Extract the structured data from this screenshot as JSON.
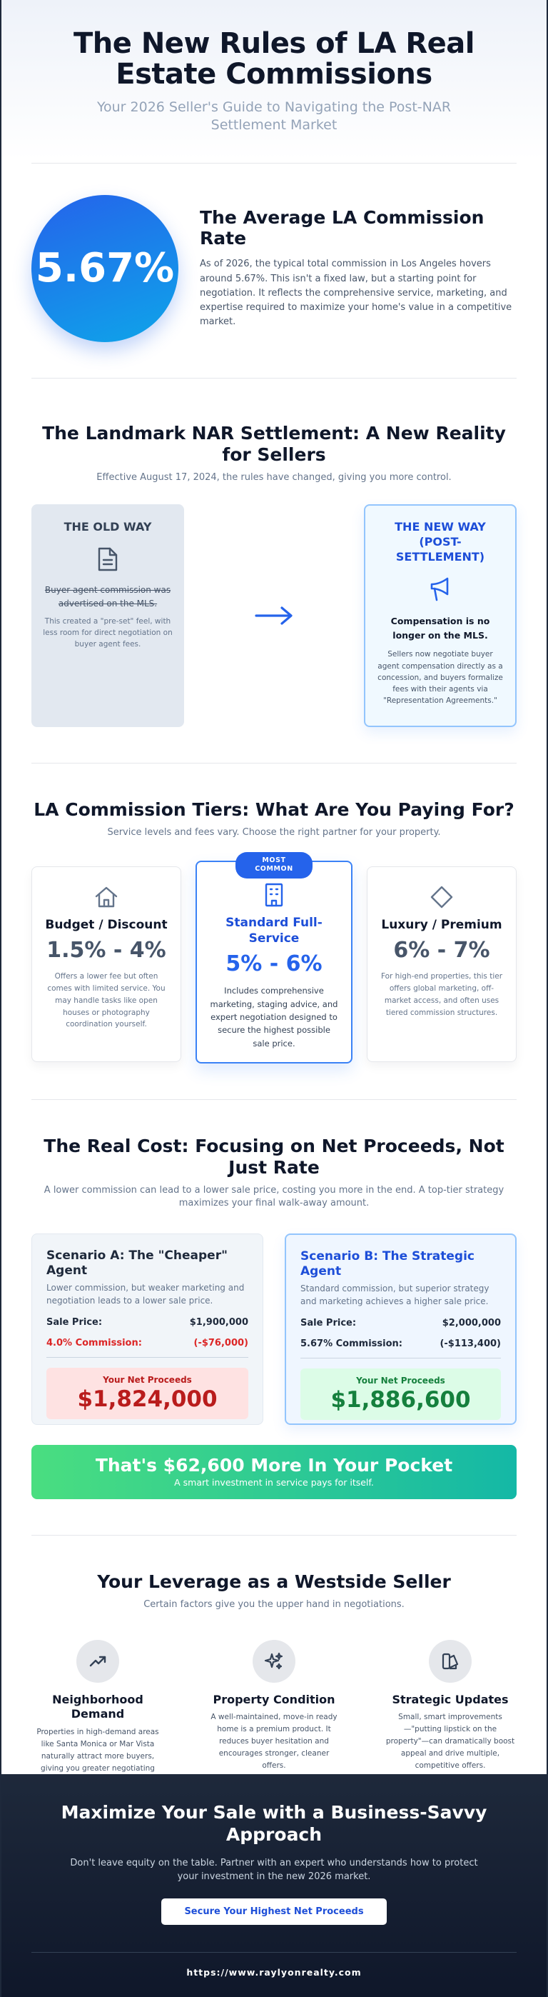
{
  "header": {
    "title": "The New Rules of LA Real Estate Commissions",
    "subtitle": "Your 2026 Seller's Guide to Navigating the Post-NAR Settlement Market"
  },
  "average": {
    "rate": "5.67%",
    "heading": "The Average LA Commission Rate",
    "body": "As of 2026, the typical total commission in Los Angeles hovers around 5.67%. This isn't a fixed law, but a starting point for negotiation. It reflects the comprehensive service, marketing, and expertise required to maximize your home's value in a competitive market."
  },
  "nar": {
    "title": "The Landmark NAR Settlement: A New Reality for Sellers",
    "subtitle": "Effective August 17, 2024, the rules have changed, giving you more control.",
    "old_way": {
      "title": "THE OLD WAY",
      "strike": "Buyer agent commission was advertised on the MLS.",
      "note": "This created a \"pre-set\" feel, with less room for direct negotiation on buyer agent fees."
    },
    "new_way": {
      "title": "THE NEW WAY (POST-SETTLEMENT)",
      "strong": "Compensation is no longer on the MLS.",
      "note": "Sellers now negotiate buyer agent compensation directly as a concession, and buyers formalize fees with their agents via \"Representation Agreements.\""
    }
  },
  "tiers": {
    "title": "LA Commission Tiers: What Are You Paying For?",
    "subtitle": "Service levels and fees vary. Choose the right partner for your property.",
    "items": [
      {
        "name": "Budget / Discount",
        "price": "1.5% - 4%",
        "desc": "Offers a lower fee but often comes with limited service. You may handle tasks like open houses or photography coordination yourself.",
        "icon": "home-icon"
      },
      {
        "badge": "MOST COMMON",
        "name": "Standard Full-Service",
        "price": "5% - 6%",
        "desc": "Includes comprehensive marketing, staging advice, and expert negotiation designed to secure the highest possible sale price.",
        "icon": "building-icon"
      },
      {
        "name": "Luxury / Premium",
        "price": "6% - 7%",
        "desc": "For high-end properties, this tier offers global marketing, off-market access, and often uses tiered commission structures.",
        "icon": "diamond-icon"
      }
    ]
  },
  "net": {
    "title": "The Real Cost: Focusing on Net Proceeds, Not Just Rate",
    "subtitle": "A lower commission can lead to a lower sale price, costing you more in the end. A top-tier strategy maximizes your final walk-away amount.",
    "scenario_a": {
      "title": "Scenario A: The \"Cheaper\" Agent",
      "desc": "Lower commission, but weaker marketing and negotiation leads to a lower sale price.",
      "sale_label": "Sale Price:",
      "sale_value": "$1,900,000",
      "comm_label": "4.0% Commission:",
      "comm_value": "(-$76,000)",
      "proceeds_label": "Your Net Proceeds",
      "proceeds_value": "$1,824,000"
    },
    "scenario_b": {
      "title": "Scenario B: The Strategic Agent",
      "desc": "Standard commission, but superior strategy and marketing achieves a higher sale price.",
      "sale_label": "Sale Price:",
      "sale_value": "$2,000,000",
      "comm_label": "5.67% Commission:",
      "comm_value": "(-$113,400)",
      "proceeds_label": "Your Net Proceeds",
      "proceeds_value": "$1,886,600"
    },
    "pocket_title": "That's $62,600 More In Your Pocket",
    "pocket_sub": "A smart investment in service pays for itself."
  },
  "leverage": {
    "title": "Your Leverage as a Westside Seller",
    "subtitle": "Certain factors give you the upper hand in negotiations.",
    "items": [
      {
        "name": "Neighborhood Demand",
        "desc": "Properties in high-demand areas like Santa Monica or Mar Vista naturally attract more buyers, giving you greater negotiating power.",
        "icon": "trending-up-icon"
      },
      {
        "name": "Property Condition",
        "desc": "A well-maintained, move-in ready home is a premium product. It reduces buyer hesitation and encourages stronger, cleaner offers.",
        "icon": "sparkles-icon"
      },
      {
        "name": "Strategic Updates",
        "desc": "Small, smart improvements—\"putting lipstick on the property\"—can dramatically boost appeal and drive multiple, competitive offers.",
        "icon": "swatch-icon"
      }
    ]
  },
  "cta": {
    "title": "Maximize Your Sale with a Business-Savvy Approach",
    "body": "Don't leave equity on the table. Partner with an expert who understands how to protect your investment in the new 2026 market.",
    "button": "Secure Your Highest Net Proceeds",
    "url": "https://www.raylyonrealty.com"
  },
  "colors": {
    "accent": "#2563eb",
    "dark": "#0f172a",
    "loss": "#b91c1c",
    "gain": "#15803d"
  }
}
